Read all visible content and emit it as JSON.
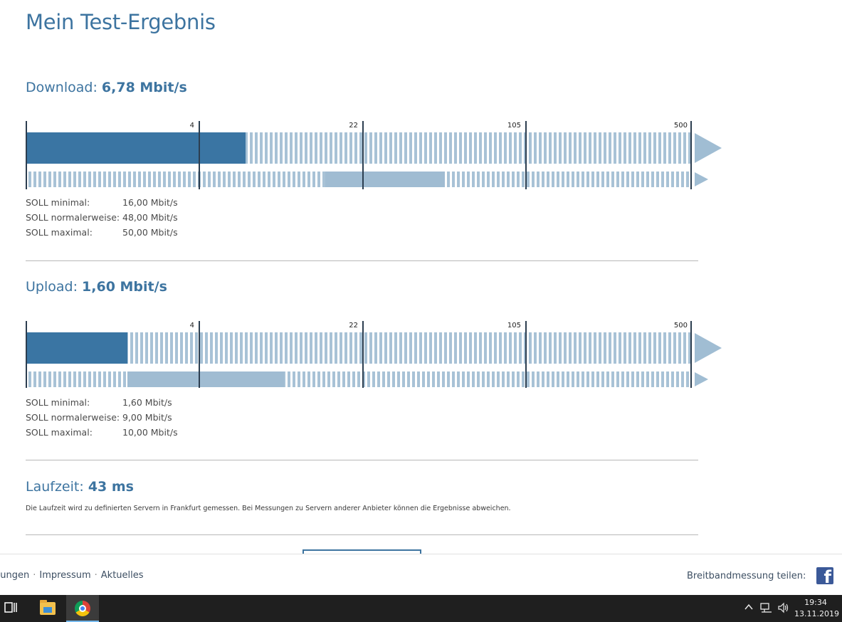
{
  "page_title": "Mein Test-Ergebnis",
  "scale_ticks": [
    "4",
    "22",
    "105",
    "500"
  ],
  "download": {
    "label": "Download:",
    "value": "6,78 Mbit/s",
    "measured_fill_fraction": 0.33,
    "expected_range_fraction": [
      0.45,
      0.63
    ],
    "soll": [
      {
        "label": "SOLL minimal:",
        "value": "16,00 Mbit/s"
      },
      {
        "label": "SOLL normalerweise:",
        "value": "48,00 Mbit/s"
      },
      {
        "label": "SOLL maximal:",
        "value": "50,00 Mbit/s"
      }
    ]
  },
  "upload": {
    "label": "Upload:",
    "value": "1,60 Mbit/s",
    "measured_fill_fraction": 0.153,
    "expected_range_fraction": [
      0.153,
      0.388
    ],
    "soll": [
      {
        "label": "SOLL minimal:",
        "value": "1,60 Mbit/s"
      },
      {
        "label": "SOLL normalerweise:",
        "value": "9,00 Mbit/s"
      },
      {
        "label": "SOLL maximal:",
        "value": "10,00 Mbit/s"
      }
    ]
  },
  "laufzeit": {
    "label": "Laufzeit:",
    "value": "43 ms",
    "note": "Die Laufzeit wird zu definierten Servern in Frankfurt gemessen. Bei Messungen zu Servern anderer Anbieter können die Ergebnisse abweichen."
  },
  "footer": {
    "links": [
      "gungen",
      "Impressum",
      "Aktuelles"
    ],
    "separator": "·",
    "share_label": "Breitbandmessung teilen:",
    "share_icon": "facebook-icon"
  },
  "taskbar": {
    "time": "19:34",
    "date": "13.11.2019",
    "apps": [
      "task-view-icon",
      "file-explorer-icon",
      "chrome-icon"
    ],
    "tray": [
      "chevron-up-icon",
      "network-icon",
      "volume-icon"
    ]
  },
  "colors": {
    "accent": "#3d74a0",
    "bar_fill": "#3a75a3",
    "bar_stripe": "#a8c2d6",
    "expected_fill": "#a0bcd2"
  }
}
